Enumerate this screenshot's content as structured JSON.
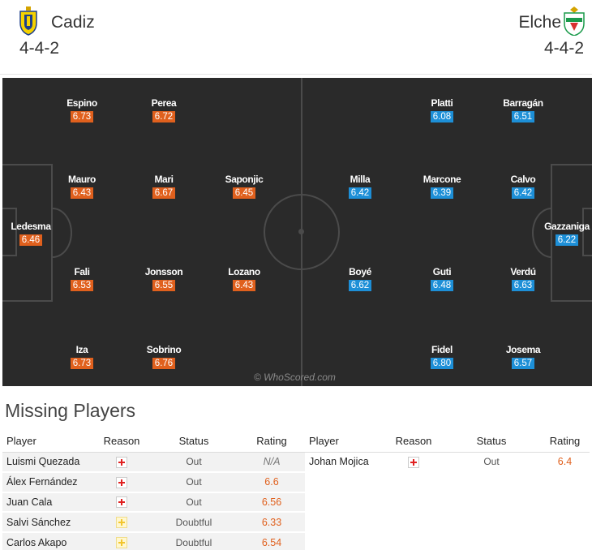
{
  "home": {
    "name": "Cadiz",
    "formation": "4-4-2",
    "crest_colors": {
      "primary": "#f5d200",
      "secondary": "#1d3f8c"
    },
    "rating_color": "#e0601d",
    "players": [
      {
        "name": "Espino",
        "rating": "6.73"
      },
      {
        "name": "Perea",
        "rating": "6.72"
      },
      {
        "name": "Mauro",
        "rating": "6.43"
      },
      {
        "name": "Mari",
        "rating": "6.67"
      },
      {
        "name": "Saponjic",
        "rating": "6.45"
      },
      {
        "name": "Ledesma",
        "rating": "6.46"
      },
      {
        "name": "Fali",
        "rating": "6.53"
      },
      {
        "name": "Jonsson",
        "rating": "6.55"
      },
      {
        "name": "Lozano",
        "rating": "6.43"
      },
      {
        "name": "Iza",
        "rating": "6.73"
      },
      {
        "name": "Sobrino",
        "rating": "6.76"
      }
    ]
  },
  "away": {
    "name": "Elche",
    "formation": "4-4-2",
    "crest_colors": {
      "primary": "#1a9a4a",
      "secondary": "#ffffff"
    },
    "rating_color": "#1d8fd7",
    "players": [
      {
        "name": "Platti",
        "rating": "6.08"
      },
      {
        "name": "Barragán",
        "rating": "6.51"
      },
      {
        "name": "Milla",
        "rating": "6.42"
      },
      {
        "name": "Marcone",
        "rating": "6.39"
      },
      {
        "name": "Calvo",
        "rating": "6.42"
      },
      {
        "name": "Gazzaniga",
        "rating": "6.22"
      },
      {
        "name": "Boyé",
        "rating": "6.62"
      },
      {
        "name": "Guti",
        "rating": "6.48"
      },
      {
        "name": "Verdú",
        "rating": "6.63"
      },
      {
        "name": "Fidel",
        "rating": "6.80"
      },
      {
        "name": "Josema",
        "rating": "6.57"
      }
    ]
  },
  "watermark": "© WhoScored.com",
  "missing": {
    "title": "Missing Players",
    "columns": {
      "player": "Player",
      "reason": "Reason",
      "status": "Status",
      "rating": "Rating"
    },
    "home": [
      {
        "player": "Luismi Quezada",
        "reason_icon": "injury-icon",
        "status": "Out",
        "rating": "N/A"
      },
      {
        "player": "Álex Fernández",
        "reason_icon": "injury-icon",
        "status": "Out",
        "rating": "6.6"
      },
      {
        "player": "Juan Cala",
        "reason_icon": "injury-icon",
        "status": "Out",
        "rating": "6.56"
      },
      {
        "player": "Salvi Sánchez",
        "reason_icon": "doubtful-icon",
        "status": "Doubtful",
        "rating": "6.33"
      },
      {
        "player": "Carlos Akapo",
        "reason_icon": "doubtful-icon",
        "status": "Doubtful",
        "rating": "6.54"
      }
    ],
    "away": [
      {
        "player": "Johan Mojica",
        "reason_icon": "injury-icon",
        "status": "Out",
        "rating": "6.4"
      }
    ]
  }
}
